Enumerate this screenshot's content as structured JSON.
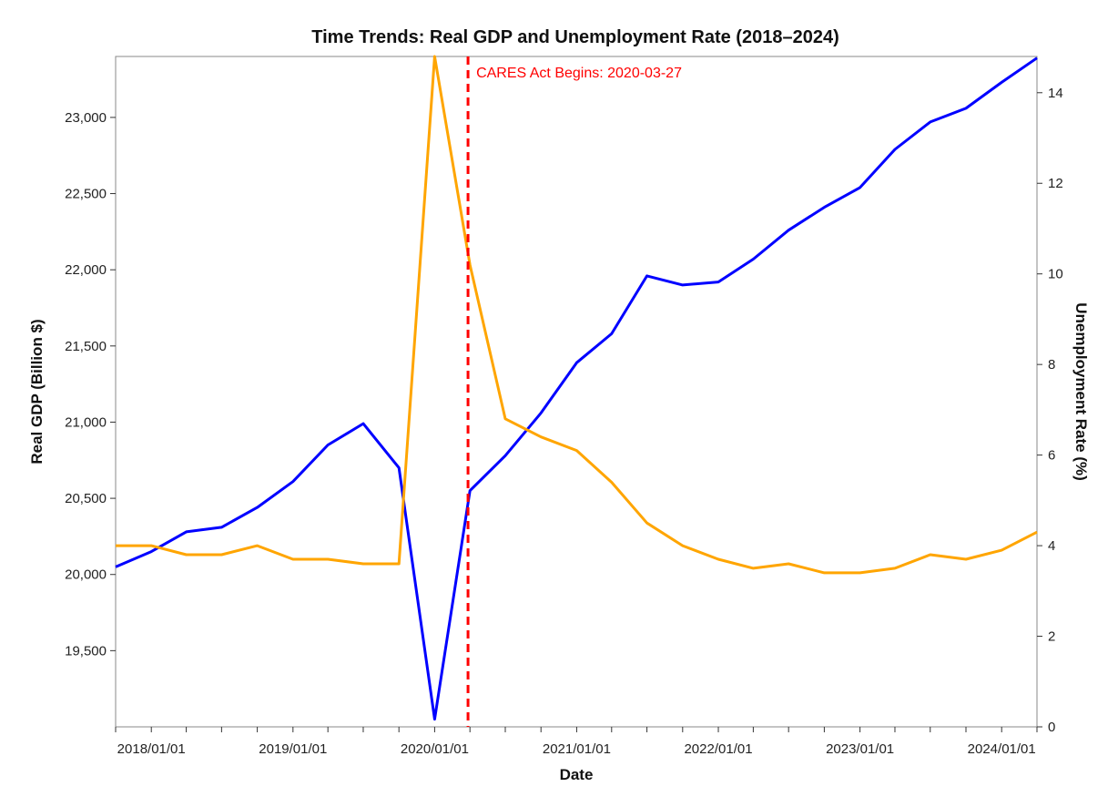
{
  "chart_data": {
    "type": "line",
    "title": "Time Trends: Real GDP and Unemployment Rate (2018–2024)",
    "xlabel": "Date",
    "ylabel_left": "Real GDP (Billion $)",
    "ylabel_right": "Unemployment Rate (%)",
    "x_tick_labels": [
      "2018/01/01",
      "2019/01/01",
      "2020/01/01",
      "2021/01/01",
      "2022/01/01",
      "2023/01/01",
      "2024/01/01"
    ],
    "y_left_tick_labels": [
      "19,500",
      "20,000",
      "20,500",
      "21,000",
      "21,500",
      "22,000",
      "22,500",
      "23,000"
    ],
    "y_left_ticks": [
      19500,
      20000,
      20500,
      21000,
      21500,
      22000,
      22500,
      23000
    ],
    "y_left_lim": [
      19000,
      23400
    ],
    "y_right_tick_labels": [
      "0",
      "2",
      "4",
      "6",
      "8",
      "10",
      "12",
      "14"
    ],
    "y_right_ticks": [
      0,
      2,
      4,
      6,
      8,
      10,
      12,
      14
    ],
    "y_right_lim": [
      0,
      14.8
    ],
    "x_lim": [
      "2017-10-01",
      "2024-04-01"
    ],
    "x": [
      "2017-10-01",
      "2018-01-01",
      "2018-04-01",
      "2018-07-01",
      "2018-10-01",
      "2019-01-01",
      "2019-04-01",
      "2019-07-01",
      "2019-10-01",
      "2020-01-01",
      "2020-04-01",
      "2020-07-01",
      "2020-10-01",
      "2021-01-01",
      "2021-04-01",
      "2021-07-01",
      "2021-10-01",
      "2022-01-01",
      "2022-04-01",
      "2022-07-01",
      "2022-10-01",
      "2023-01-01",
      "2023-04-01",
      "2023-07-01",
      "2023-10-01",
      "2024-01-01",
      "2024-04-01"
    ],
    "series": [
      {
        "name": "Real GDP",
        "axis": "left",
        "color": "#0000ff",
        "values": [
          20050,
          20150,
          20280,
          20310,
          20440,
          20610,
          20850,
          20990,
          20700,
          19050,
          20550,
          20780,
          21060,
          21390,
          21580,
          21960,
          21900,
          21920,
          22070,
          22260,
          22410,
          22540,
          22790,
          22970,
          23060,
          23230,
          23390
        ]
      },
      {
        "name": "Unemployment Rate",
        "axis": "right",
        "color": "#ffa500",
        "values": [
          4.0,
          4.0,
          3.8,
          3.8,
          4.0,
          3.7,
          3.7,
          3.6,
          3.6,
          14.8,
          10.2,
          6.8,
          6.4,
          6.1,
          5.4,
          4.5,
          4.0,
          3.7,
          3.5,
          3.6,
          3.4,
          3.4,
          3.5,
          3.8,
          3.7,
          3.9,
          4.3
        ]
      }
    ],
    "annotation": {
      "text": "CARES Act Begins: 2020-03-27",
      "date": "2020-03-27",
      "color": "#ff0000",
      "line_style": "dashed"
    },
    "grid": false,
    "legend": "none"
  }
}
